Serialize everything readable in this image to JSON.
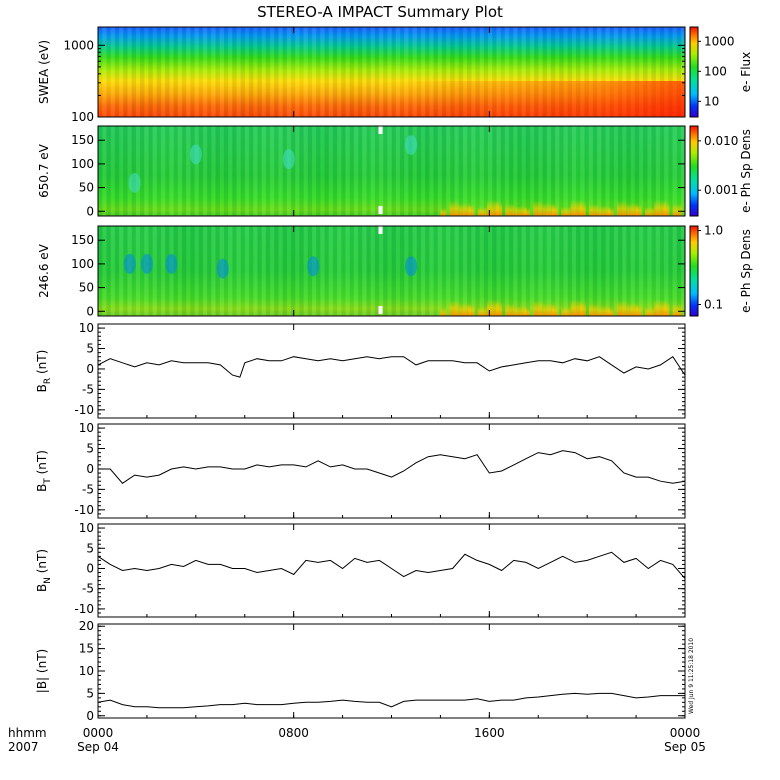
{
  "chart_data": {
    "title": "STEREO-A IMPACT Summary Plot",
    "type": "line",
    "x_axis": {
      "corner_labels": [
        "hhmm",
        "2007"
      ],
      "ticks": [
        {
          "hour": 0,
          "hhmm": "0000",
          "date": "Sep 04"
        },
        {
          "hour": 8,
          "hhmm": "0800",
          "date": ""
        },
        {
          "hour": 16,
          "hhmm": "1600",
          "date": ""
        },
        {
          "hour": 24,
          "hhmm": "0000",
          "date": "Sep 05"
        }
      ],
      "range_hours": [
        0,
        24
      ]
    },
    "spectrograms": [
      {
        "ylabel": "SWEA (eV)",
        "yscale": "log",
        "ylim": [
          100,
          1800
        ],
        "yticks": [
          {
            "v": 100,
            "t": "100"
          },
          {
            "v": 1000,
            "t": "1000"
          }
        ],
        "colorbar_label": "e- Flux",
        "colorbar_scale": "log",
        "colorbar_range": [
          3,
          3000
        ],
        "colorbar_ticks": [
          {
            "v": 10,
            "t": "10"
          },
          {
            "v": 100,
            "t": "100"
          },
          {
            "v": 1000,
            "t": "1000"
          }
        ],
        "gaps_hours": []
      },
      {
        "ylabel": "650.7 eV",
        "yscale": "linear",
        "ylim": [
          -10,
          180
        ],
        "yticks": [
          {
            "v": 0,
            "t": "0"
          },
          {
            "v": 50,
            "t": "50"
          },
          {
            "v": 100,
            "t": "100"
          },
          {
            "v": 150,
            "t": "150"
          }
        ],
        "colorbar_label": "e- Ph Sp Dens",
        "colorbar_scale": "log",
        "colorbar_range": [
          0.0003,
          0.02
        ],
        "colorbar_ticks": [
          {
            "v": 0.001,
            "t": "0.001"
          },
          {
            "v": 0.01,
            "t": "0.010"
          }
        ],
        "gaps_hours": [
          11.55
        ]
      },
      {
        "ylabel": "246.6 eV",
        "yscale": "linear",
        "ylim": [
          -10,
          180
        ],
        "yticks": [
          {
            "v": 0,
            "t": "0"
          },
          {
            "v": 50,
            "t": "50"
          },
          {
            "v": 100,
            "t": "100"
          },
          {
            "v": 150,
            "t": "150"
          }
        ],
        "colorbar_label": "e- Ph Sp Dens",
        "colorbar_scale": "log",
        "colorbar_range": [
          0.07,
          1.15
        ],
        "colorbar_ticks": [
          {
            "v": 0.1,
            "t": "0.1"
          },
          {
            "v": 1.0,
            "t": "1.0"
          }
        ],
        "gaps_hours": [
          11.55
        ]
      }
    ],
    "line_panels": [
      {
        "ylabel_base": "B",
        "ylabel_sub": "R",
        "ylabel_unit": " (nT)",
        "ylim": [
          -12,
          11
        ],
        "yticks": [
          {
            "v": -10,
            "t": "-10"
          },
          {
            "v": -5,
            "t": "-5"
          },
          {
            "v": 0,
            "t": "0"
          },
          {
            "v": 5,
            "t": "5"
          },
          {
            "v": 10,
            "t": "10"
          }
        ],
        "x_hours": [
          0,
          0.5,
          1,
          1.5,
          2,
          2.5,
          3,
          3.5,
          4,
          4.5,
          5,
          5.5,
          5.8,
          6,
          6.5,
          7,
          7.5,
          8,
          8.5,
          9,
          9.5,
          10,
          10.5,
          11,
          11.5,
          12,
          12.5,
          13,
          13.5,
          14,
          14.5,
          15,
          15.5,
          16,
          16.5,
          17,
          17.5,
          18,
          18.5,
          19,
          19.5,
          20,
          20.5,
          21,
          21.5,
          22,
          22.5,
          23,
          23.5,
          24
        ],
        "values": [
          1,
          2.5,
          1.5,
          0.5,
          1.5,
          1,
          2,
          1.5,
          1.5,
          1.5,
          1,
          -1.5,
          -2,
          1.5,
          2.5,
          2,
          2,
          3,
          2.5,
          2,
          2.5,
          2,
          2.5,
          3,
          2.5,
          3,
          3,
          1,
          2,
          2,
          2,
          1.5,
          1.5,
          -0.5,
          0.5,
          1,
          1.5,
          2,
          2,
          1.5,
          2.5,
          2,
          3,
          1,
          -1,
          0.5,
          0,
          1,
          3,
          -1.5
        ]
      },
      {
        "ylabel_base": "B",
        "ylabel_sub": "T",
        "ylabel_unit": " (nT)",
        "ylim": [
          -12,
          11
        ],
        "yticks": [
          {
            "v": -10,
            "t": "-10"
          },
          {
            "v": -5,
            "t": "-5"
          },
          {
            "v": 0,
            "t": "0"
          },
          {
            "v": 5,
            "t": "5"
          },
          {
            "v": 10,
            "t": "10"
          }
        ],
        "x_hours": [
          0,
          0.5,
          1,
          1.5,
          2,
          2.5,
          3,
          3.5,
          4,
          4.5,
          5,
          5.5,
          6,
          6.5,
          7,
          7.5,
          8,
          8.5,
          9,
          9.5,
          10,
          10.5,
          11,
          11.5,
          12,
          12.5,
          13,
          13.5,
          14,
          14.5,
          15,
          15.5,
          16,
          16.5,
          17,
          17.5,
          18,
          18.5,
          19,
          19.5,
          20,
          20.5,
          21,
          21.5,
          22,
          22.5,
          23,
          23.5,
          24
        ],
        "values": [
          0,
          0,
          -3.5,
          -1.5,
          -2,
          -1.5,
          0,
          0.5,
          0,
          0.5,
          0.5,
          0,
          0,
          1,
          0.5,
          1,
          1,
          0.5,
          2,
          0.5,
          1,
          0,
          0,
          -1,
          -2,
          -0.5,
          1.5,
          3,
          3.5,
          3,
          2.5,
          3.5,
          -1,
          -0.5,
          1,
          2.5,
          4,
          3.5,
          4.5,
          4,
          2.5,
          3,
          2,
          -1,
          -2,
          -2,
          -3,
          -3.5,
          -3
        ]
      },
      {
        "ylabel_base": "B",
        "ylabel_sub": "N",
        "ylabel_unit": " (nT)",
        "ylim": [
          -12,
          11
        ],
        "yticks": [
          {
            "v": -10,
            "t": "-10"
          },
          {
            "v": -5,
            "t": "-5"
          },
          {
            "v": 0,
            "t": "0"
          },
          {
            "v": 5,
            "t": "5"
          },
          {
            "v": 10,
            "t": "10"
          }
        ],
        "x_hours": [
          0,
          0.5,
          1,
          1.5,
          2,
          2.5,
          3,
          3.5,
          4,
          4.5,
          5,
          5.5,
          6,
          6.5,
          7,
          7.5,
          8,
          8.5,
          9,
          9.5,
          10,
          10.5,
          11,
          11.5,
          12,
          12.5,
          13,
          13.5,
          14,
          14.5,
          15,
          15.5,
          16,
          16.5,
          17,
          17.5,
          18,
          18.5,
          19,
          19.5,
          20,
          20.5,
          21,
          21.5,
          22,
          22.5,
          23,
          23.5,
          24
        ],
        "values": [
          3,
          1,
          -0.5,
          0,
          -0.5,
          0,
          1,
          0.5,
          2,
          1,
          1,
          0,
          0,
          -1,
          -0.5,
          0,
          -1.5,
          2,
          1.5,
          2,
          0,
          2.5,
          1.5,
          2,
          0,
          -2,
          -0.5,
          -1,
          -0.5,
          0,
          3.5,
          2,
          1,
          -0.5,
          2,
          1.5,
          0,
          1.5,
          3,
          1.5,
          2,
          3,
          4,
          1.5,
          2.5,
          0,
          2,
          1,
          -2.5
        ]
      },
      {
        "ylabel_base": "|B|",
        "ylabel_sub": "",
        "ylabel_unit": " (nT)",
        "ylim": [
          -0.5,
          20.5
        ],
        "yticks": [
          {
            "v": 0,
            "t": "0"
          },
          {
            "v": 5,
            "t": "5"
          },
          {
            "v": 10,
            "t": "10"
          },
          {
            "v": 15,
            "t": "15"
          },
          {
            "v": 20,
            "t": "20"
          }
        ],
        "x_hours": [
          0,
          0.5,
          1,
          1.5,
          2,
          2.5,
          3,
          3.5,
          4,
          4.5,
          5,
          5.5,
          6,
          6.5,
          7,
          7.5,
          8,
          8.5,
          9,
          9.5,
          10,
          10.5,
          11,
          11.5,
          12,
          12.5,
          13,
          13.5,
          14,
          14.5,
          15,
          15.5,
          16,
          16.5,
          17,
          17.5,
          18,
          18.5,
          19,
          19.5,
          20,
          20.5,
          21,
          21.5,
          22,
          22.5,
          23,
          23.5,
          24
        ],
        "values": [
          3,
          3.5,
          2.5,
          2,
          2,
          1.8,
          1.8,
          1.8,
          2,
          2.2,
          2.5,
          2.5,
          2.8,
          2.5,
          2.5,
          2.5,
          2.8,
          3,
          3,
          3.2,
          3.5,
          3.2,
          3,
          3,
          2,
          3.2,
          3.5,
          3.5,
          3.5,
          3.5,
          3.5,
          3.8,
          3.2,
          3.5,
          3.5,
          4,
          4.2,
          4.5,
          4.8,
          5,
          4.8,
          5,
          5,
          4.5,
          4,
          4.2,
          4.5,
          4.5,
          4.5
        ]
      }
    ],
    "timestamp": "Wed Jun  9 11:25:18 2010"
  }
}
